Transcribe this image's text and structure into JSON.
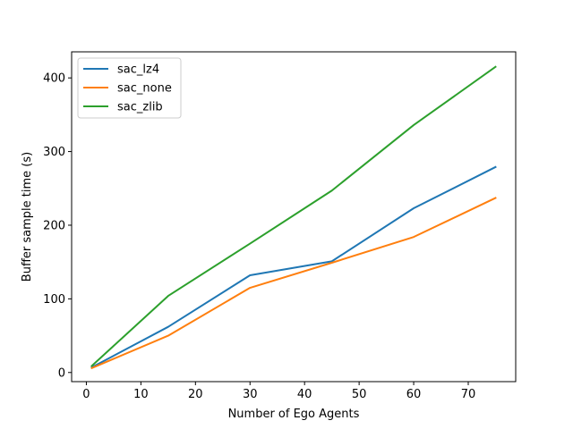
{
  "chart_data": {
    "type": "line",
    "title": "",
    "xlabel": "Number of Ego Agents",
    "ylabel": "Buffer sample time (s)",
    "xlim": [
      -2.7,
      78.7
    ],
    "ylim": [
      -12.4,
      435.4
    ],
    "xticks": [
      0,
      10,
      20,
      30,
      40,
      50,
      60,
      70
    ],
    "yticks": [
      0,
      100,
      200,
      300,
      400
    ],
    "grid": false,
    "legend_position": "top-left",
    "x": [
      1,
      15,
      30,
      45,
      60,
      75
    ],
    "series": [
      {
        "name": "sac_lz4",
        "color": "#1f77b4",
        "values": [
          7,
          62,
          132,
          151,
          223,
          279
        ]
      },
      {
        "name": "sac_none",
        "color": "#ff7f0e",
        "values": [
          6,
          50,
          115,
          149,
          184,
          237
        ]
      },
      {
        "name": "sac_zlib",
        "color": "#2ca02c",
        "values": [
          9,
          104,
          175,
          247,
          336,
          415
        ]
      }
    ]
  }
}
